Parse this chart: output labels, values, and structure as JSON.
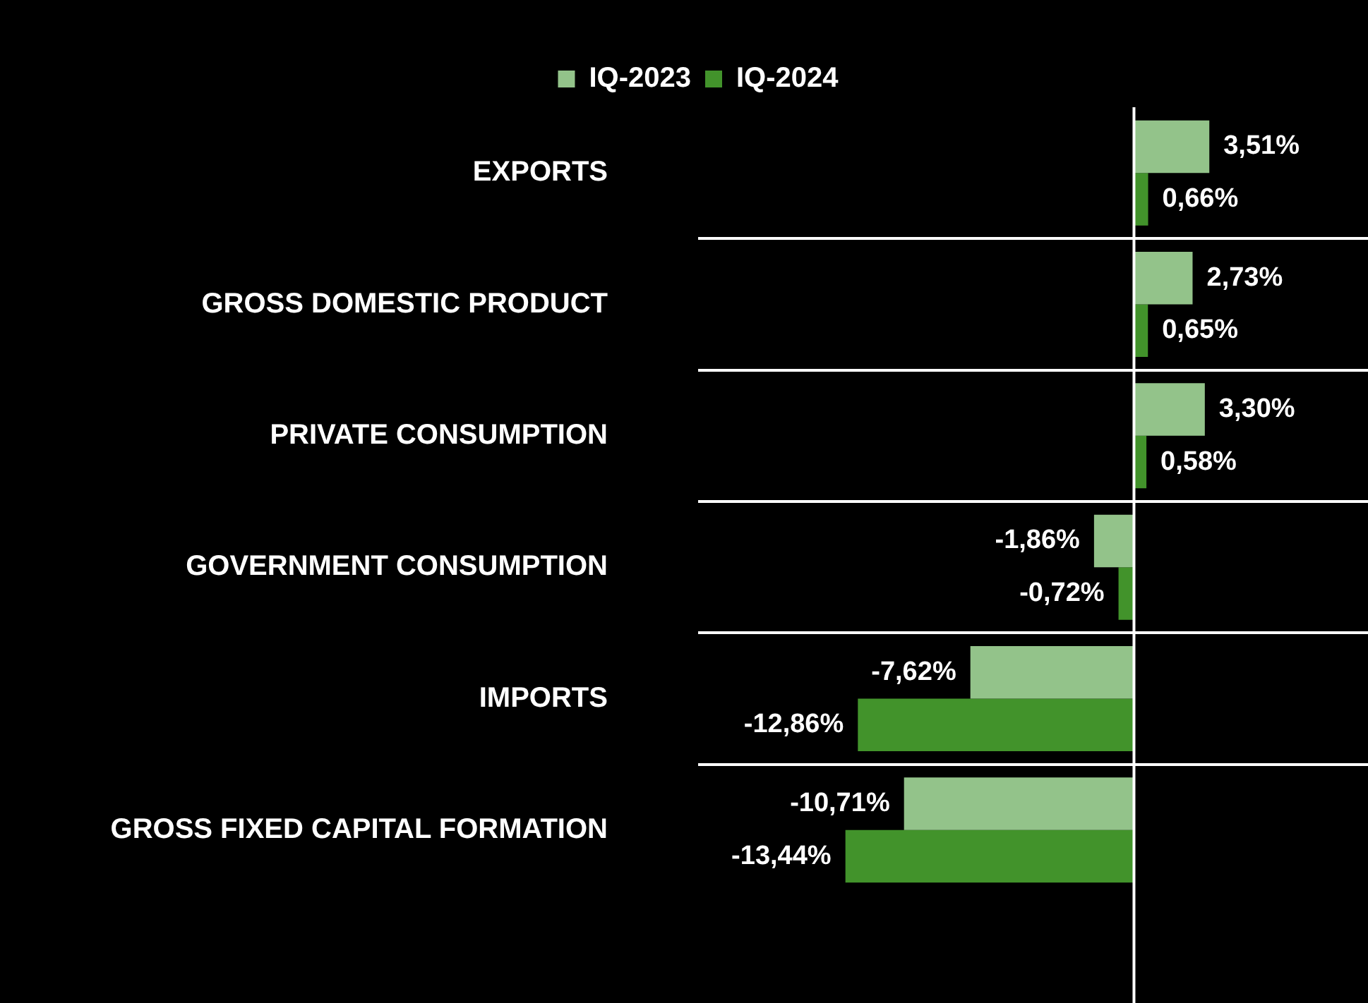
{
  "chart_data": {
    "type": "bar",
    "orientation": "horizontal",
    "categories": [
      "EXPORTS",
      "GROSS DOMESTIC PRODUCT",
      "PRIVATE CONSUMPTION",
      "GOVERNMENT CONSUMPTION",
      "IMPORTS",
      "GROSS FIXED CAPITAL FORMATION"
    ],
    "series": [
      {
        "name": "IQ-2023",
        "color": "#93c38a",
        "values": [
          3.51,
          2.73,
          3.3,
          -1.86,
          -7.62,
          -10.71
        ],
        "value_labels": [
          "3,51%",
          "2,73%",
          "3,30%",
          "-1,86%",
          "-7,62%",
          "-10,71%"
        ]
      },
      {
        "name": "IQ-2024",
        "color": "#42932b",
        "values": [
          0.66,
          0.65,
          0.58,
          -0.72,
          -12.86,
          -13.44
        ],
        "value_labels": [
          "0,66%",
          "0,65%",
          "0,58%",
          "-0,72%",
          "-12,86%",
          "-13,44%"
        ]
      }
    ],
    "xlim": [
      -20.3,
      10.9
    ],
    "grid": "y",
    "legend": "top",
    "tick_labels": "y"
  }
}
